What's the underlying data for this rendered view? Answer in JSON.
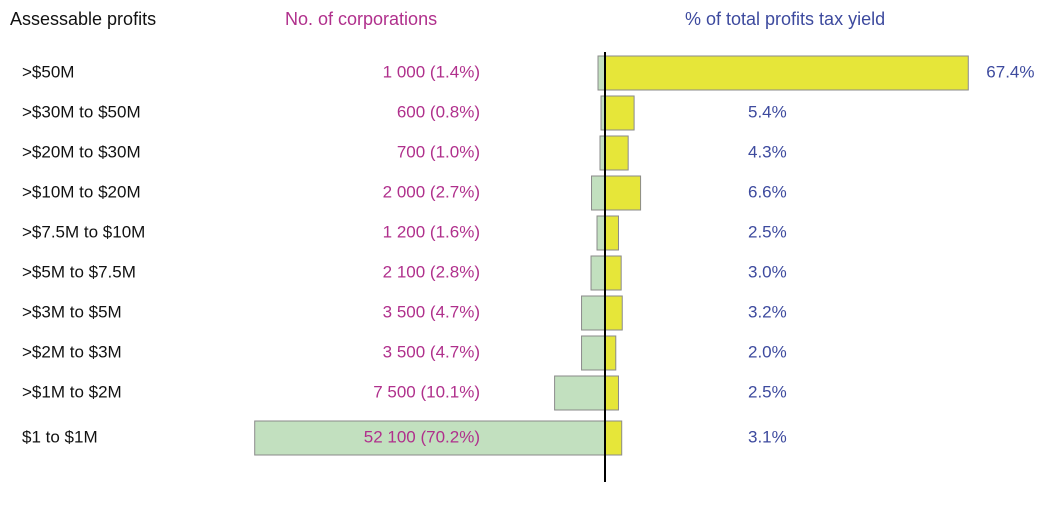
{
  "chart_data": {
    "type": "butterfly",
    "category_label": "Assessable profits",
    "categories": [
      ">$50M",
      ">$30M to $50M",
      ">$20M to $30M",
      ">$10M to $20M",
      ">$7.5M to $10M",
      ">$5M to $7.5M",
      ">$3M to $5M",
      ">$2M to $3M",
      ">$1M to $2M",
      "$1 to $1M"
    ],
    "series": [
      {
        "name": "No. of corporations",
        "side": "left",
        "color": "#c2e0bf",
        "label_color": "#b0308c",
        "values": [
          1.4,
          0.8,
          1.0,
          2.7,
          1.6,
          2.8,
          4.7,
          4.7,
          10.1,
          70.2
        ],
        "value_labels": [
          "1 000 (1.4%)",
          "600 (0.8%)",
          "700 (1.0%)",
          "2 000 (2.7%)",
          "1 200 (1.6%)",
          "2 100 (2.8%)",
          "3 500 (4.7%)",
          "3 500 (4.7%)",
          "7 500 (10.1%)",
          "52 100 (70.2%)"
        ]
      },
      {
        "name": "% of total profits tax yield",
        "side": "right",
        "color": "#e6e639",
        "label_color": "#3d4a9e",
        "values": [
          67.4,
          5.4,
          4.3,
          6.6,
          2.5,
          3.0,
          3.2,
          2.0,
          2.5,
          3.1
        ],
        "value_labels": [
          "67.4%",
          "5.4%",
          "4.3%",
          "6.6%",
          "2.5%",
          "3.0%",
          "3.2%",
          "2.0%",
          "2.5%",
          "3.1%"
        ]
      }
    ]
  }
}
